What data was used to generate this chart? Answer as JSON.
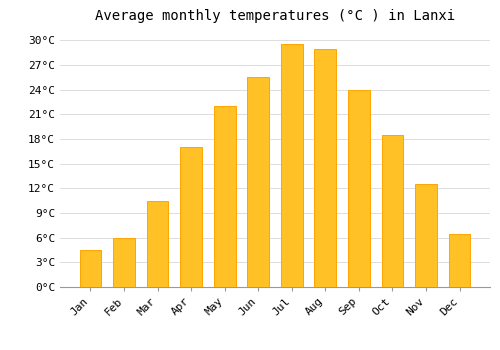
{
  "title": "Average monthly temperatures (°C ) in Lanxi",
  "months": [
    "Jan",
    "Feb",
    "Mar",
    "Apr",
    "May",
    "Jun",
    "Jul",
    "Aug",
    "Sep",
    "Oct",
    "Nov",
    "Dec"
  ],
  "values": [
    4.5,
    6.0,
    10.5,
    17.0,
    22.0,
    25.5,
    29.5,
    29.0,
    24.0,
    18.5,
    12.5,
    6.5
  ],
  "bar_color": "#FFC125",
  "bar_edge_color": "#FFA500",
  "background_color": "#FFFFFF",
  "grid_color": "#DDDDDD",
  "ylim": [
    0,
    31.5
  ],
  "yticks": [
    0,
    3,
    6,
    9,
    12,
    15,
    18,
    21,
    24,
    27,
    30
  ],
  "title_fontsize": 10,
  "tick_fontsize": 8
}
